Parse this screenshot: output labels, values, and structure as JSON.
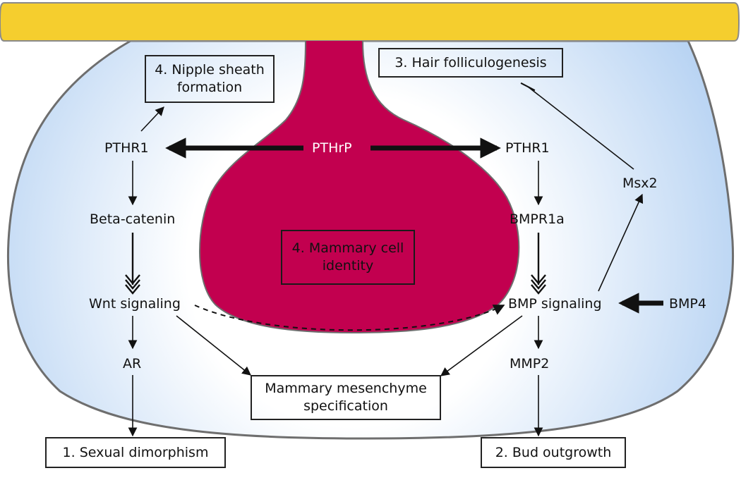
{
  "colors": {
    "epithelial_layer": "#f5ce2e",
    "mesenchyme_edge": "#b9d4f3",
    "mesenchyme_core": "#ffffff",
    "mammary_bud": "#c2004f",
    "outline": "#6e6e6e",
    "arrow": "#111111"
  },
  "boxes": {
    "nipple_sheath": {
      "line1": "4. Nipple sheath",
      "line2": "formation"
    },
    "hair_folliculogenesis": "3. Hair folliculogenesis",
    "mammary_identity": {
      "line1": "4. Mammary cell",
      "line2": "identity"
    },
    "mesenchyme_spec": {
      "line1": "Mammary mesenchyme",
      "line2": "specification"
    },
    "sexual_dimorphism": "1. Sexual dimorphism",
    "bud_outgrowth": "2. Bud outgrowth"
  },
  "nodes": {
    "pthrp": "PTHrP",
    "pthr1_left": "PTHR1",
    "pthr1_right": "PTHR1",
    "beta_catenin": "Beta-catenin",
    "wnt_signaling": "Wnt signaling",
    "ar": "AR",
    "bmpr1a": "BMPR1a",
    "bmp_signaling": "BMP signaling",
    "bmp4": "BMP4",
    "mmp2": "MMP2",
    "msx2": "Msx2"
  }
}
